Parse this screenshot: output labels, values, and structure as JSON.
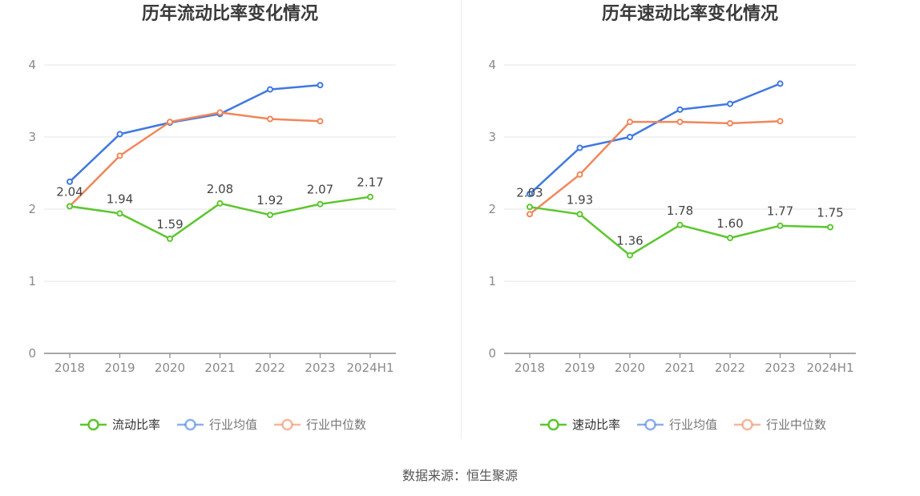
{
  "source": "数据来源：恒生聚源",
  "colors": {
    "main": "#5cc62e",
    "avg": "#3f78e0",
    "median": "#f0875c",
    "grid": "#e6e6e6",
    "axis": "#8a8a8a"
  },
  "chart_data": [
    {
      "type": "line",
      "title": "历年流动比率变化情况",
      "categories": [
        "2018",
        "2019",
        "2020",
        "2021",
        "2022",
        "2023",
        "2024H1"
      ],
      "ylim": [
        0,
        4
      ],
      "yticks": [
        0,
        1,
        2,
        3,
        4
      ],
      "series": [
        {
          "name": "流动比率",
          "values": [
            2.04,
            1.94,
            1.59,
            2.08,
            1.92,
            2.07,
            2.17
          ],
          "labels": [
            "2.04",
            "1.94",
            "1.59",
            "2.08",
            "1.92",
            "2.07",
            "2.17"
          ]
        },
        {
          "name": "行业均值",
          "values": [
            2.38,
            3.04,
            3.2,
            3.32,
            3.66,
            3.72,
            null
          ]
        },
        {
          "name": "行业中位数",
          "values": [
            2.04,
            2.74,
            3.21,
            3.34,
            3.25,
            3.22,
            null
          ]
        }
      ]
    },
    {
      "type": "line",
      "title": "历年速动比率变化情况",
      "categories": [
        "2018",
        "2019",
        "2020",
        "2021",
        "2022",
        "2023",
        "2024H1"
      ],
      "ylim": [
        0,
        4
      ],
      "yticks": [
        0,
        1,
        2,
        3,
        4
      ],
      "series": [
        {
          "name": "速动比率",
          "values": [
            2.03,
            1.93,
            1.36,
            1.78,
            1.6,
            1.77,
            1.75
          ],
          "labels": [
            "2.03",
            "1.93",
            "1.36",
            "1.78",
            "1.60",
            "1.77",
            "1.75"
          ]
        },
        {
          "name": "行业均值",
          "values": [
            2.21,
            2.85,
            3.0,
            3.38,
            3.46,
            3.74,
            null
          ]
        },
        {
          "name": "行业中位数",
          "values": [
            1.93,
            2.48,
            3.21,
            3.21,
            3.19,
            3.22,
            null
          ]
        }
      ]
    }
  ]
}
